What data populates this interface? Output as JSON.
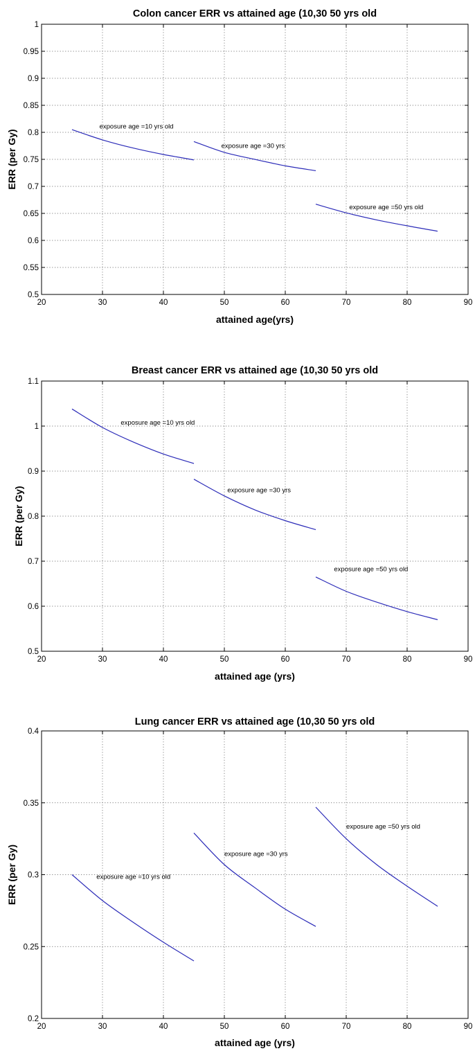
{
  "chart_data": [
    {
      "type": "line",
      "title": "Colon cancer ERR vs attained age (10,30 50 yrs old",
      "xlabel": "attained age(yrs)",
      "ylabel": "ERR (per Gy)",
      "xlim": [
        20,
        90
      ],
      "ylim": [
        0.5,
        1
      ],
      "xticks": [
        "20",
        "30",
        "40",
        "50",
        "60",
        "70",
        "80",
        "90"
      ],
      "yticks": [
        "0.5",
        "0.55",
        "0.6",
        "0.65",
        "0.7",
        "0.75",
        "0.8",
        "0.85",
        "0.9",
        "0.95",
        "1"
      ],
      "grid": true,
      "series": [
        {
          "x": [
            25,
            30,
            35,
            40,
            45
          ],
          "y": [
            0.805,
            0.786,
            0.771,
            0.759,
            0.749
          ]
        },
        {
          "x": [
            45,
            50,
            55,
            60,
            65
          ],
          "y": [
            0.783,
            0.763,
            0.75,
            0.738,
            0.729
          ]
        },
        {
          "x": [
            65,
            70,
            75,
            80,
            85
          ],
          "y": [
            0.667,
            0.651,
            0.638,
            0.627,
            0.617
          ]
        }
      ],
      "annotations": [
        {
          "text": "exposure age =10 yrs old",
          "x": 29.5,
          "y": 0.807
        },
        {
          "text": "exposure age =30 yrs",
          "x": 49.5,
          "y": 0.771
        },
        {
          "text": "exposure age =50 yrs old",
          "x": 70.5,
          "y": 0.658
        }
      ]
    },
    {
      "type": "line",
      "title": "Breast cancer ERR vs attained age (10,30 50 yrs old",
      "xlabel": "attained age (yrs)",
      "ylabel": "ERR (per Gy)",
      "xlim": [
        20,
        90
      ],
      "ylim": [
        0.5,
        1.1
      ],
      "xticks": [
        "20",
        "30",
        "40",
        "50",
        "60",
        "70",
        "80",
        "90"
      ],
      "yticks": [
        "0.5",
        "0.6",
        "0.7",
        "0.8",
        "0.9",
        "1",
        "1.1"
      ],
      "grid": true,
      "series": [
        {
          "x": [
            25,
            30,
            35,
            40,
            45
          ],
          "y": [
            1.038,
            0.997,
            0.965,
            0.938,
            0.917
          ]
        },
        {
          "x": [
            45,
            50,
            55,
            60,
            65
          ],
          "y": [
            0.882,
            0.845,
            0.814,
            0.79,
            0.77
          ]
        },
        {
          "x": [
            65,
            70,
            75,
            80,
            85
          ],
          "y": [
            0.665,
            0.633,
            0.609,
            0.588,
            0.57
          ]
        }
      ],
      "annotations": [
        {
          "text": "exposure age =10 yrs old",
          "x": 33,
          "y": 1.003
        },
        {
          "text": "exposure age =30 yrs",
          "x": 50.5,
          "y": 0.853
        },
        {
          "text": "exposure age =50 yrs old",
          "x": 68,
          "y": 0.678
        }
      ]
    },
    {
      "type": "line",
      "title": "Lung cancer ERR vs attained age (10,30 50 yrs old",
      "xlabel": "attained age (yrs)",
      "ylabel": "ERR (per Gy)",
      "xlim": [
        20,
        90
      ],
      "ylim": [
        0.2,
        0.4
      ],
      "xticks": [
        "20",
        "30",
        "40",
        "50",
        "60",
        "70",
        "80",
        "90"
      ],
      "yticks": [
        "0.2",
        "0.25",
        "0.3",
        "0.35",
        "0.4"
      ],
      "grid": true,
      "series": [
        {
          "x": [
            25,
            30,
            35,
            40,
            45
          ],
          "y": [
            0.3,
            0.282,
            0.267,
            0.253,
            0.24
          ]
        },
        {
          "x": [
            45,
            50,
            55,
            60,
            65
          ],
          "y": [
            0.329,
            0.307,
            0.291,
            0.276,
            0.264
          ]
        },
        {
          "x": [
            65,
            70,
            75,
            80,
            85
          ],
          "y": [
            0.347,
            0.325,
            0.307,
            0.292,
            0.278
          ]
        }
      ],
      "annotations": [
        {
          "text": "exposure age =10 yrs old",
          "x": 29,
          "y": 0.297
        },
        {
          "text": "exposure age =30 yrs",
          "x": 50,
          "y": 0.313
        },
        {
          "text": "exposure age =50 yrs old",
          "x": 70,
          "y": 0.332
        }
      ]
    }
  ]
}
